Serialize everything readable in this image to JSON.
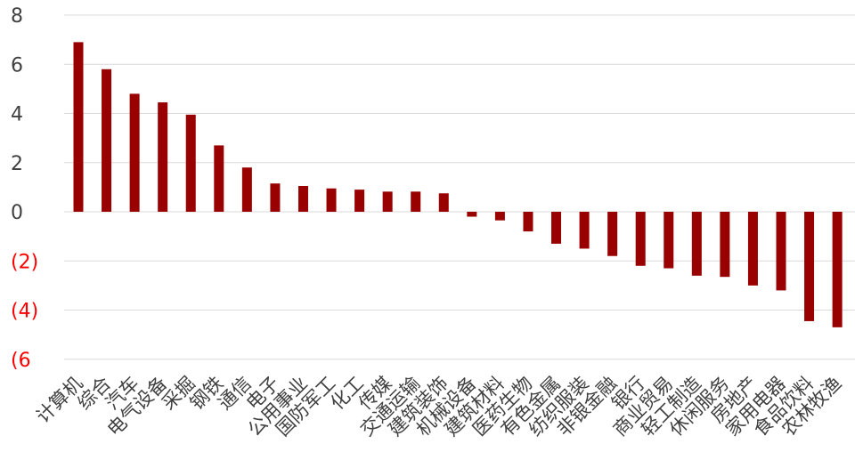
{
  "chart_data": {
    "type": "bar",
    "title": "",
    "xlabel": "",
    "ylabel": "",
    "ylim": [
      -6,
      8
    ],
    "yticks": [
      {
        "value": 8,
        "label": "8"
      },
      {
        "value": 6,
        "label": "6"
      },
      {
        "value": 4,
        "label": "4"
      },
      {
        "value": 2,
        "label": "2"
      },
      {
        "value": 0,
        "label": "0"
      },
      {
        "value": -2,
        "label": "(2)"
      },
      {
        "value": -4,
        "label": "(4)"
      },
      {
        "value": -6,
        "label": "(6"
      }
    ],
    "grid": true,
    "legend": "none",
    "categories": [
      "计算机",
      "综合",
      "汽车",
      "电气设备",
      "采掘",
      "钢铁",
      "通信",
      "电子",
      "公用事业",
      "国防军工",
      "化工",
      "传媒",
      "交通运输",
      "建筑装饰",
      "机械设备",
      "建筑材料",
      "医药生物",
      "有色金属",
      "纺织服装",
      "非银金融",
      "银行",
      "商业贸易",
      "轻工制造",
      "休闲服务",
      "房地产",
      "家用电器",
      "食品饮料",
      "农林牧渔"
    ],
    "values": [
      6.9,
      5.8,
      4.8,
      4.45,
      3.95,
      2.7,
      1.8,
      1.15,
      1.05,
      0.95,
      0.9,
      0.82,
      0.82,
      0.75,
      -0.2,
      -0.35,
      -0.8,
      -1.3,
      -1.5,
      -1.8,
      -2.2,
      -2.3,
      -2.6,
      -2.65,
      -3.0,
      -3.2,
      -4.45,
      -4.7
    ],
    "colors": {
      "bar": "#990000",
      "grid": "#d9d9d9",
      "positive_tick": "#404040",
      "negative_tick": "#ff0000"
    }
  }
}
